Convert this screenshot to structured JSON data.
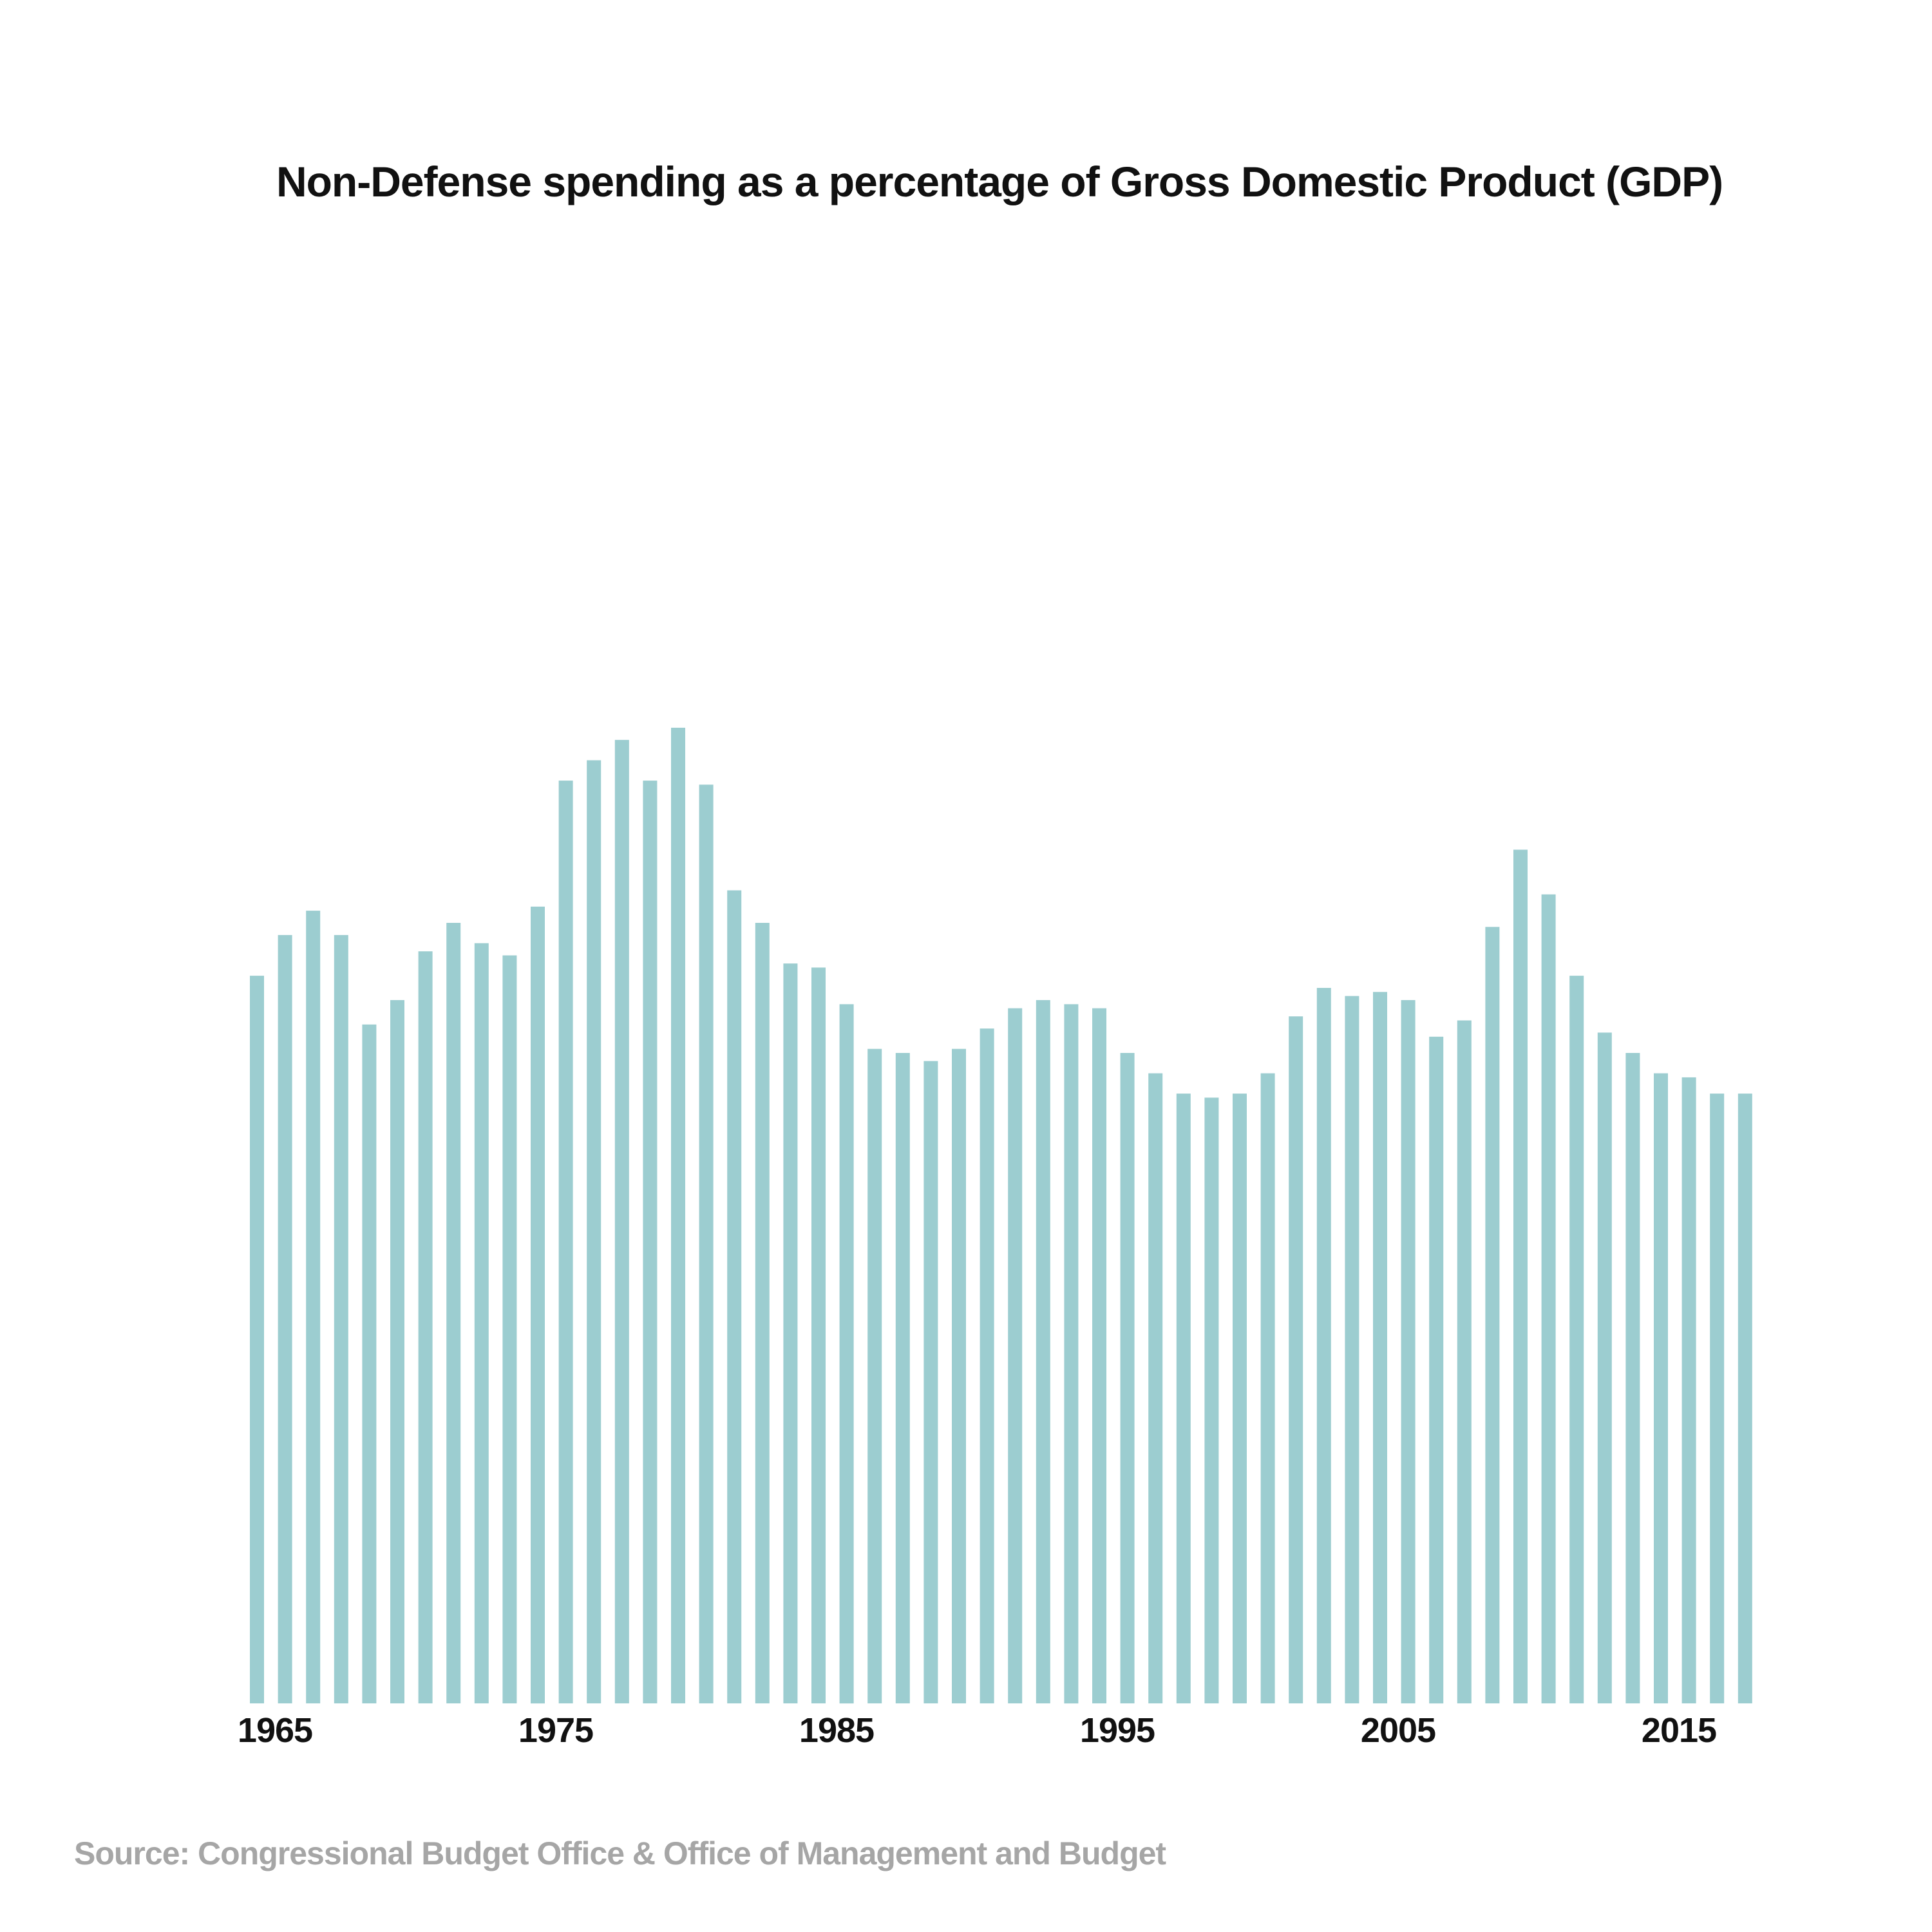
{
  "chart_data": {
    "type": "bar",
    "title": "Non-Defense spending as a percentage of Gross Domestic Product (GDP)",
    "xlabel": "",
    "ylabel": "",
    "source": "Source: Congressional Budget Office & Office of Management and Budget",
    "bar_color": "#9ccdd0",
    "grid": false,
    "legend": "none",
    "ylim": [
      0,
      24
    ],
    "x_tick_labels": [
      "1965",
      "1975",
      "1985",
      "1995",
      "2005",
      "2015"
    ],
    "categories": [
      1965,
      1966,
      1967,
      1968,
      1969,
      1970,
      1971,
      1972,
      1973,
      1974,
      1975,
      1976,
      1977,
      1978,
      1979,
      1980,
      1981,
      1982,
      1983,
      1984,
      1985,
      1986,
      1987,
      1988,
      1989,
      1990,
      1991,
      1992,
      1993,
      1994,
      1995,
      1996,
      1997,
      1998,
      1999,
      2000,
      2001,
      2002,
      2003,
      2004,
      2005,
      2006,
      2007,
      2008,
      2009,
      2010,
      2011,
      2012,
      2013,
      2014,
      2015,
      2016,
      2017,
      2018
    ],
    "values": [
      17.9,
      18.9,
      19.5,
      18.9,
      16.7,
      17.3,
      18.5,
      19.2,
      18.7,
      18.4,
      19.6,
      22.7,
      23.2,
      23.7,
      22.7,
      24.0,
      22.6,
      20.0,
      19.2,
      18.2,
      18.1,
      17.2,
      16.1,
      16.0,
      15.8,
      16.1,
      16.6,
      17.1,
      17.3,
      17.2,
      17.1,
      16.0,
      15.5,
      15.0,
      14.9,
      15.0,
      15.5,
      16.9,
      17.6,
      17.4,
      17.5,
      17.3,
      16.4,
      16.8,
      19.1,
      21.0,
      19.9,
      17.9,
      16.5,
      16.0,
      15.5,
      15.4,
      15.0,
      15.0
    ]
  }
}
